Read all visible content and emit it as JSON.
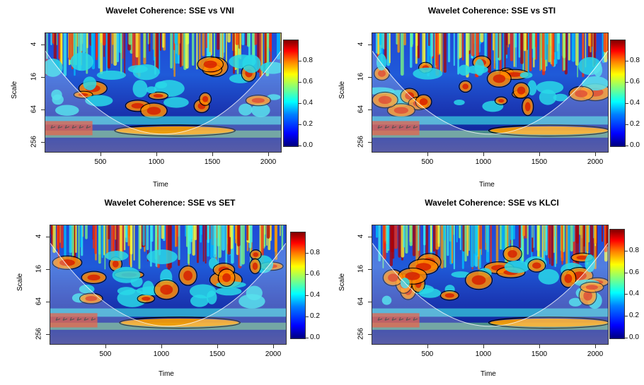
{
  "chart_data": [
    {
      "type": "heatmap",
      "title": "Wavelet Coherence: SSE vs VNI",
      "xlabel": "Time",
      "ylabel": "Scale",
      "x_ticks": [
        "500",
        "1000",
        "1500",
        "2000"
      ],
      "y_ticks": [
        "4",
        "16",
        "64",
        "256"
      ],
      "xlim": [
        1,
        2120
      ],
      "colorbar": {
        "ticks": [
          "0.0",
          "0.2",
          "0.4",
          "0.6",
          "0.8"
        ],
        "range": [
          0,
          1
        ]
      }
    },
    {
      "type": "heatmap",
      "title": "Wavelet Coherence: SSE vs STI",
      "xlabel": "Time",
      "ylabel": "Scale",
      "x_ticks": [
        "500",
        "1000",
        "1500",
        "2000"
      ],
      "y_ticks": [
        "4",
        "16",
        "64",
        "256"
      ],
      "xlim": [
        1,
        2120
      ],
      "colorbar": {
        "ticks": [
          "0.0",
          "0.2",
          "0.4",
          "0.6",
          "0.8"
        ],
        "range": [
          0,
          1
        ]
      }
    },
    {
      "type": "heatmap",
      "title": "Wavelet Coherence: SSE vs SET",
      "xlabel": "Time",
      "ylabel": "Scale",
      "x_ticks": [
        "500",
        "1000",
        "1500",
        "2000"
      ],
      "y_ticks": [
        "4",
        "16",
        "64",
        "256"
      ],
      "xlim": [
        1,
        2120
      ],
      "colorbar": {
        "ticks": [
          "0.0",
          "0.2",
          "0.4",
          "0.6",
          "0.8"
        ],
        "range": [
          0,
          1
        ]
      }
    },
    {
      "type": "heatmap",
      "title": "Wavelet Coherence: SSE vs KLCI",
      "xlabel": "Time",
      "ylabel": "Scale",
      "x_ticks": [
        "500",
        "1000",
        "1500",
        "2000"
      ],
      "y_ticks": [
        "4",
        "16",
        "64",
        "256"
      ],
      "xlim": [
        1,
        2120
      ],
      "colorbar": {
        "ticks": [
          "0.0",
          "0.2",
          "0.4",
          "0.6",
          "0.8"
        ],
        "range": [
          0,
          1
        ]
      }
    }
  ]
}
